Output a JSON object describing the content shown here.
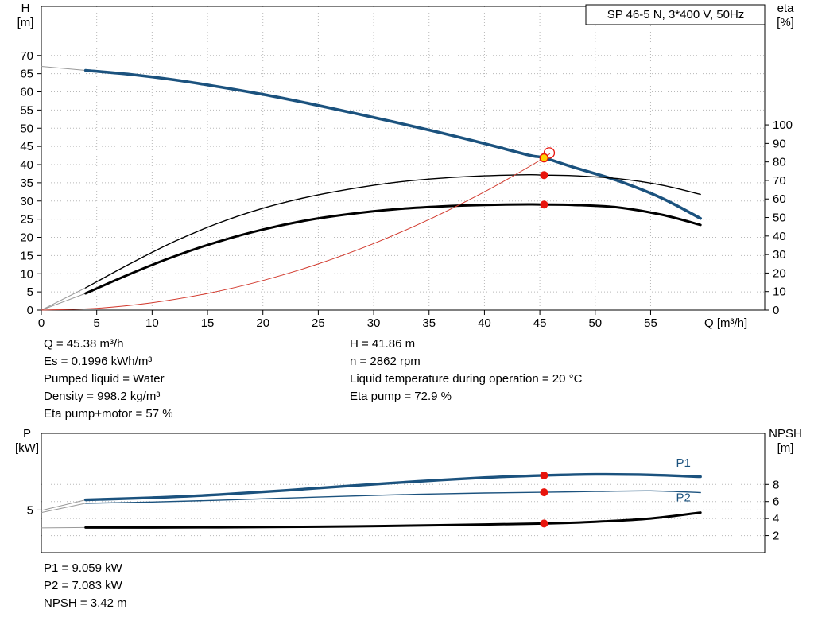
{
  "colors": {
    "blue": "#1b527e",
    "black": "#000000",
    "red": "#d23a2e",
    "marker_red": "#e8150d",
    "marker_yellow": "#ffd100",
    "grid": "#b8b8b8",
    "lead": "#999999"
  },
  "chart_data": [
    {
      "type": "line",
      "title": "SP 46-5 N, 3*400 V, 50Hz",
      "x_axis": {
        "label": "Q [m³/h]",
        "min": 0,
        "max": 65.3,
        "ticks": [
          0,
          5,
          10,
          15,
          20,
          25,
          30,
          35,
          40,
          45,
          50,
          55
        ]
      },
      "y_left": {
        "label": "H",
        "unit": "[m]",
        "min": 0,
        "max": 83.5,
        "ticks": [
          0,
          5,
          10,
          15,
          20,
          25,
          30,
          35,
          40,
          45,
          50,
          55,
          60,
          65,
          70
        ]
      },
      "y_right": {
        "label": "eta",
        "unit": "[%]",
        "min": 0,
        "max": 164,
        "ticks": [
          0,
          10,
          20,
          30,
          40,
          50,
          60,
          70,
          80,
          90,
          100
        ]
      },
      "series": [
        {
          "name": "head-curve",
          "axis": "left",
          "color": "blue",
          "width": 3.6,
          "lead_from": [
            [
              0,
              67
            ]
          ],
          "points": [
            [
              4,
              65.9
            ],
            [
              8,
              64.8
            ],
            [
              12,
              63.3
            ],
            [
              16,
              61.4
            ],
            [
              20,
              59.3
            ],
            [
              24,
              56.9
            ],
            [
              28,
              54.3
            ],
            [
              32,
              51.6
            ],
            [
              36,
              48.8
            ],
            [
              40,
              45.8
            ],
            [
              44,
              42.6
            ],
            [
              45.38,
              41.86
            ],
            [
              48,
              39.3
            ],
            [
              52,
              35.6
            ],
            [
              56,
              30.8
            ],
            [
              59.5,
              25.2
            ]
          ]
        },
        {
          "name": "eta-pump-curve",
          "axis": "right",
          "color": "black",
          "width": 1.4,
          "lead_from": [
            [
              0,
              0
            ]
          ],
          "points": [
            [
              4,
              12
            ],
            [
              8,
              25
            ],
            [
              12,
              37
            ],
            [
              16,
              47
            ],
            [
              20,
              55
            ],
            [
              24,
              61
            ],
            [
              28,
              65.5
            ],
            [
              32,
              69
            ],
            [
              36,
              71.2
            ],
            [
              40,
              72.5
            ],
            [
              44,
              73.1
            ],
            [
              45.38,
              72.9
            ],
            [
              48,
              72.6
            ],
            [
              52,
              71
            ],
            [
              56,
              67.5
            ],
            [
              59.5,
              62.5
            ]
          ]
        },
        {
          "name": "eta-pump-motor-curve",
          "axis": "right",
          "color": "black",
          "width": 3,
          "lead_from": [
            [
              0,
              0
            ]
          ],
          "points": [
            [
              4,
              9
            ],
            [
              8,
              19.5
            ],
            [
              12,
              29
            ],
            [
              16,
              37
            ],
            [
              20,
              43.5
            ],
            [
              24,
              48.5
            ],
            [
              28,
              52
            ],
            [
              32,
              54.5
            ],
            [
              36,
              56
            ],
            [
              40,
              56.8
            ],
            [
              44,
              57.1
            ],
            [
              45.38,
              57
            ],
            [
              48,
              56.8
            ],
            [
              52,
              55.5
            ],
            [
              56,
              51.5
            ],
            [
              59.5,
              46
            ]
          ]
        },
        {
          "name": "duty-system-curve",
          "axis": "left",
          "color": "red",
          "width": 1,
          "points": [
            [
              0,
              0
            ],
            [
              5,
              0.51
            ],
            [
              10,
              2.03
            ],
            [
              15,
              4.57
            ],
            [
              20,
              8.13
            ],
            [
              25,
              12.71
            ],
            [
              30,
              18.3
            ],
            [
              35,
              24.9
            ],
            [
              40,
              32.5
            ],
            [
              43,
              37.6
            ],
            [
              45.38,
              41.86
            ],
            [
              45.9,
              43.0
            ]
          ]
        }
      ],
      "markers": [
        {
          "shape": "circle-open",
          "axis": "left",
          "x": 45.85,
          "y": 43.2,
          "stroke": "red"
        },
        {
          "shape": "dot",
          "axis": "left",
          "x": 45.38,
          "y": 41.86,
          "fill": "yellow",
          "stroke": "red"
        },
        {
          "shape": "dot",
          "axis": "right",
          "x": 45.38,
          "y": 72.9,
          "fill": "red"
        },
        {
          "shape": "dot",
          "axis": "right",
          "x": 45.38,
          "y": 57,
          "fill": "red"
        }
      ],
      "series_labels": []
    },
    {
      "type": "line",
      "title": "",
      "x_axis": {
        "label": "",
        "min": 0,
        "max": 65.3,
        "ticks": []
      },
      "y_left": {
        "label": "P",
        "unit": "[kW]",
        "min": 0,
        "max": 14,
        "ticks": [
          5
        ]
      },
      "y_right": {
        "label": "NPSH",
        "unit": "[m]",
        "min": 0,
        "max": 14,
        "ticks": [
          2,
          4,
          6,
          8
        ]
      },
      "series": [
        {
          "name": "p1-curve",
          "axis": "left",
          "color": "blue",
          "width": 3.4,
          "lead_from": [
            [
              0,
              4.95
            ]
          ],
          "points": [
            [
              4,
              6.2
            ],
            [
              10,
              6.45
            ],
            [
              16,
              6.8
            ],
            [
              22,
              7.3
            ],
            [
              28,
              7.85
            ],
            [
              34,
              8.35
            ],
            [
              40,
              8.8
            ],
            [
              45.38,
              9.059
            ],
            [
              50,
              9.18
            ],
            [
              55,
              9.12
            ],
            [
              59.5,
              8.9
            ]
          ]
        },
        {
          "name": "p2-curve",
          "axis": "left",
          "color": "blue",
          "width": 1.4,
          "lead_from": [
            [
              0,
              4.7
            ]
          ],
          "points": [
            [
              4,
              5.8
            ],
            [
              10,
              5.95
            ],
            [
              16,
              6.15
            ],
            [
              22,
              6.4
            ],
            [
              28,
              6.65
            ],
            [
              34,
              6.85
            ],
            [
              40,
              7.0
            ],
            [
              45.38,
              7.083
            ],
            [
              50,
              7.18
            ],
            [
              55,
              7.25
            ],
            [
              59.5,
              7.05
            ]
          ]
        },
        {
          "name": "npsh-curve",
          "axis": "right",
          "color": "black",
          "width": 3,
          "lead_from": [
            [
              0,
              2.9
            ]
          ],
          "points": [
            [
              4,
              2.95
            ],
            [
              10,
              2.95
            ],
            [
              16,
              2.98
            ],
            [
              22,
              3.02
            ],
            [
              28,
              3.08
            ],
            [
              34,
              3.18
            ],
            [
              40,
              3.3
            ],
            [
              45.38,
              3.42
            ],
            [
              50,
              3.62
            ],
            [
              55,
              4.0
            ],
            [
              59.5,
              4.7
            ]
          ]
        }
      ],
      "markers": [
        {
          "shape": "dot",
          "axis": "left",
          "x": 45.38,
          "y": 9.059,
          "fill": "red"
        },
        {
          "shape": "dot",
          "axis": "left",
          "x": 45.38,
          "y": 7.083,
          "fill": "red"
        },
        {
          "shape": "dot",
          "axis": "right",
          "x": 45.38,
          "y": 3.42,
          "fill": "red"
        }
      ],
      "series_labels": [
        {
          "text": "P1",
          "axis": "left",
          "x": 57.3,
          "y": 10.1,
          "color": "blue"
        },
        {
          "text": "P2",
          "axis": "left",
          "x": 57.3,
          "y": 6.0,
          "color": "blue"
        }
      ]
    }
  ],
  "results": {
    "left": [
      "Q = 45.38 m³/h",
      "Es = 0.1996 kWh/m³",
      "Pumped liquid = Water",
      "Density = 998.2 kg/m³",
      "Eta pump+motor = 57 %"
    ],
    "right": [
      "H = 41.86 m",
      "n = 2862 rpm",
      "Liquid temperature during operation = 20 °C",
      "Eta pump = 72.9 %"
    ]
  },
  "bottom_results": [
    "P1 = 9.059 kW",
    "P2 = 7.083 kW",
    "NPSH = 3.42 m"
  ]
}
